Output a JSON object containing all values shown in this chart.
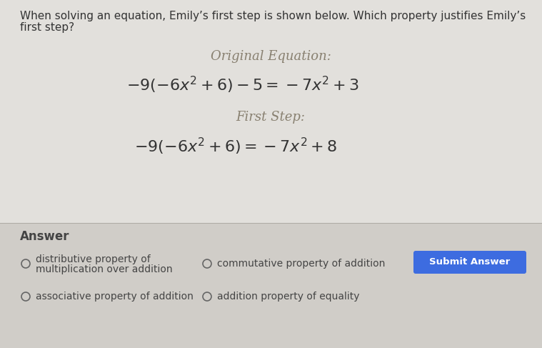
{
  "bg_color": "#c8c8c8",
  "content_bg": "#e2e0dc",
  "answer_bg": "#d0cdc8",
  "question_text_line1": "When solving an equation, Emily’s first step is shown below. Which property justifies Emily’s",
  "question_text_line2": "first step?",
  "orig_label": "Original Equation:",
  "orig_eq_raw": "$-9(-6x^2+6)-5=-7x^2+3$",
  "step_label": "First Step:",
  "step_eq_raw": "$-9(-6x^2+6)=-7x^2+8$",
  "answer_label": "Answer",
  "option1_line1": "distributive property of",
  "option1_line2": "multiplication over addition",
  "option2": "commutative property of addition",
  "option3": "associative property of addition",
  "option4": "addition property of equality",
  "button_text": "Submit Answer",
  "button_color": "#3d6ce0",
  "button_text_color": "#ffffff",
  "label_color": "#888070",
  "eq_color": "#333333",
  "text_color": "#333333",
  "answer_text_color": "#444444",
  "question_fontsize": 11,
  "label_fontsize": 13,
  "eq_fontsize": 16,
  "answer_label_fontsize": 12,
  "option_fontsize": 10
}
